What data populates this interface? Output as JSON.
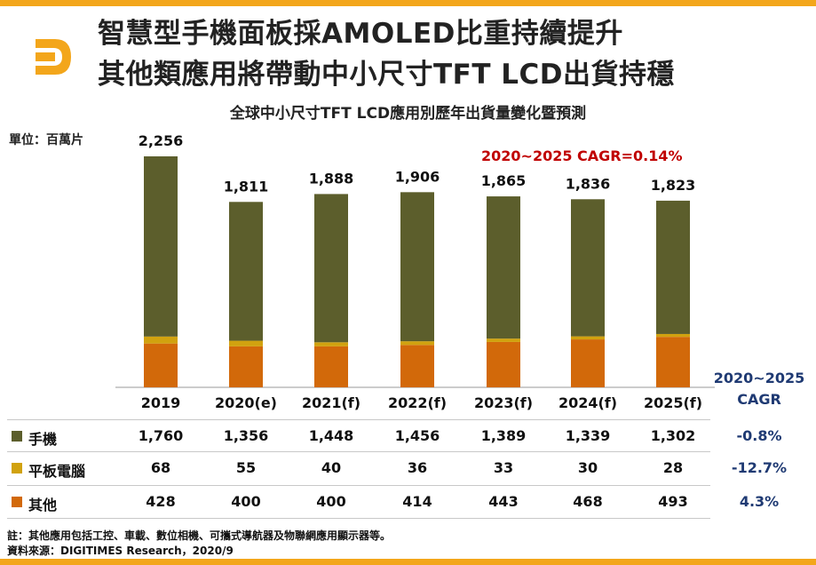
{
  "title_line1": "智慧型手機面板採AMOLED比重持續提升",
  "title_line2": "其他類應用將帶動中小尺寸TFT LCD出貨持穩",
  "colors": {
    "accent": "#f3a61b",
    "phone": "#5c5e2c",
    "tablet": "#d1a20f",
    "other": "#d2690a",
    "cagr_red": "#c00000",
    "cagr_blue": "#1f3a73"
  },
  "logo_icon": "digitimes-d-logo-icon",
  "chart_data": {
    "type": "bar",
    "stacked": true,
    "title": "全球中小尺寸TFT LCD應用別歷年出貨量變化暨預測",
    "unit_label": "單位：百萬片",
    "categories": [
      "2019",
      "2020(e)",
      "2021(f)",
      "2022(f)",
      "2023(f)",
      "2024(f)",
      "2025(f)"
    ],
    "totals": [
      "2,256",
      "1,811",
      "1,888",
      "1,906",
      "1,865",
      "1,836",
      "1,823"
    ],
    "series": [
      {
        "name": "手機",
        "values": [
          1760,
          1356,
          1448,
          1456,
          1389,
          1339,
          1302
        ],
        "labels": [
          "1,760",
          "1,356",
          "1,448",
          "1,456",
          "1,389",
          "1,339",
          "1,302"
        ],
        "cagr": "-0.8%"
      },
      {
        "name": "平板電腦",
        "values": [
          68,
          55,
          40,
          36,
          33,
          30,
          28
        ],
        "labels": [
          "68",
          "55",
          "40",
          "36",
          "33",
          "30",
          "28"
        ],
        "cagr": "-12.7%"
      },
      {
        "name": "其他",
        "values": [
          428,
          400,
          400,
          414,
          443,
          468,
          493
        ],
        "labels": [
          "428",
          "400",
          "400",
          "414",
          "443",
          "468",
          "493"
        ],
        "cagr": "4.3%"
      }
    ],
    "cagr_header": [
      "2020~2025",
      "CAGR"
    ],
    "annotation": "2020~2025 CAGR=0.14%",
    "ylim": [
      0,
      2256
    ]
  },
  "footnote1": "註：其他應用包括工控、車載、數位相機、可攜式導航器及物聯網應用顯示器等。",
  "footnote2": "資料來源：DIGITIMES Research，2020/9"
}
